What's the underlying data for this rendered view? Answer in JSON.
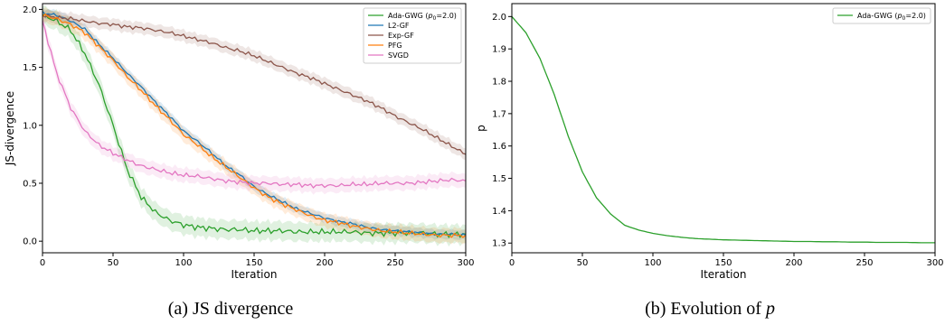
{
  "captions": [
    "(a) JS divergence",
    "(b) Evolution of p"
  ],
  "chart_data": [
    {
      "type": "line",
      "xlabel": "Iteration",
      "ylabel": "JS-divergence",
      "xlim": [
        0,
        300
      ],
      "ylim": [
        -0.1,
        2.05
      ],
      "xticks": [
        0,
        50,
        100,
        150,
        200,
        250,
        300
      ],
      "xtick_labels": [
        "0",
        "50",
        "100",
        "150",
        "200",
        "250",
        "300"
      ],
      "yticks": [
        0.0,
        0.5,
        1.0,
        1.5,
        2.0
      ],
      "ytick_labels": [
        "0.0",
        "0.5",
        "1.0",
        "1.5",
        "2.0"
      ],
      "grid": false,
      "legend_position": "top-right",
      "x": [
        0,
        10,
        20,
        30,
        40,
        50,
        60,
        70,
        80,
        90,
        100,
        110,
        120,
        130,
        140,
        150,
        160,
        170,
        180,
        190,
        200,
        210,
        220,
        230,
        240,
        250,
        260,
        270,
        280,
        290,
        300
      ],
      "series": [
        {
          "name": "Ada-GWG (p0=2.0)",
          "color": "#2ca02c",
          "values": [
            1.95,
            1.9,
            1.82,
            1.62,
            1.35,
            1.0,
            0.62,
            0.38,
            0.25,
            0.18,
            0.14,
            0.12,
            0.11,
            0.1,
            0.1,
            0.09,
            0.09,
            0.09,
            0.08,
            0.08,
            0.08,
            0.08,
            0.08,
            0.07,
            0.07,
            0.07,
            0.07,
            0.07,
            0.06,
            0.06,
            0.06
          ],
          "band": 0.08
        },
        {
          "name": "L2-GF",
          "color": "#1f77b4",
          "values": [
            1.97,
            1.95,
            1.9,
            1.83,
            1.7,
            1.58,
            1.45,
            1.33,
            1.2,
            1.08,
            0.95,
            0.86,
            0.76,
            0.65,
            0.57,
            0.47,
            0.4,
            0.34,
            0.28,
            0.24,
            0.2,
            0.17,
            0.15,
            0.12,
            0.1,
            0.09,
            0.08,
            0.07,
            0.06,
            0.06,
            0.05
          ],
          "band": 0.04
        },
        {
          "name": "Exp-GF",
          "color": "#8c564b",
          "values": [
            1.95,
            1.93,
            1.92,
            1.9,
            1.88,
            1.87,
            1.85,
            1.84,
            1.82,
            1.8,
            1.77,
            1.74,
            1.71,
            1.67,
            1.64,
            1.6,
            1.55,
            1.5,
            1.45,
            1.41,
            1.36,
            1.31,
            1.26,
            1.21,
            1.15,
            1.08,
            1.02,
            0.96,
            0.89,
            0.82,
            0.75
          ],
          "band": 0.05
        },
        {
          "name": "PFG",
          "color": "#ff7f0e",
          "values": [
            1.95,
            1.92,
            1.87,
            1.8,
            1.68,
            1.56,
            1.42,
            1.3,
            1.17,
            1.05,
            0.92,
            0.83,
            0.73,
            0.64,
            0.55,
            0.46,
            0.38,
            0.32,
            0.27,
            0.22,
            0.18,
            0.16,
            0.13,
            0.11,
            0.09,
            0.08,
            0.07,
            0.06,
            0.05,
            0.05,
            0.05
          ],
          "band": 0.06
        },
        {
          "name": "SVGD",
          "color": "#e377c2",
          "values": [
            1.9,
            1.45,
            1.15,
            0.95,
            0.83,
            0.76,
            0.7,
            0.65,
            0.62,
            0.59,
            0.57,
            0.56,
            0.54,
            0.52,
            0.51,
            0.5,
            0.5,
            0.49,
            0.49,
            0.48,
            0.48,
            0.48,
            0.49,
            0.49,
            0.5,
            0.5,
            0.5,
            0.51,
            0.52,
            0.53,
            0.52
          ],
          "band": 0.06
        }
      ]
    },
    {
      "type": "line",
      "xlabel": "Iteration",
      "ylabel": "p",
      "xlim": [
        0,
        300
      ],
      "ylim": [
        1.27,
        2.04
      ],
      "xticks": [
        0,
        50,
        100,
        150,
        200,
        250,
        300
      ],
      "xtick_labels": [
        "0",
        "50",
        "100",
        "150",
        "200",
        "250",
        "300"
      ],
      "yticks": [
        1.3,
        1.4,
        1.5,
        1.6,
        1.7,
        1.8,
        1.9,
        2.0
      ],
      "ytick_labels": [
        "1.3",
        "1.4",
        "1.5",
        "1.6",
        "1.7",
        "1.8",
        "1.9",
        "2.0"
      ],
      "grid": false,
      "legend_position": "top-right",
      "x": [
        0,
        10,
        20,
        30,
        40,
        50,
        60,
        70,
        80,
        90,
        100,
        110,
        120,
        130,
        140,
        150,
        160,
        170,
        180,
        190,
        200,
        210,
        220,
        230,
        240,
        250,
        260,
        270,
        280,
        290,
        300
      ],
      "series": [
        {
          "name": "Ada-GWG (p0=2.0)",
          "color": "#2ca02c",
          "values": [
            2.0,
            1.95,
            1.87,
            1.76,
            1.63,
            1.52,
            1.44,
            1.39,
            1.355,
            1.34,
            1.33,
            1.323,
            1.318,
            1.314,
            1.312,
            1.31,
            1.309,
            1.308,
            1.307,
            1.306,
            1.305,
            1.305,
            1.304,
            1.304,
            1.303,
            1.303,
            1.302,
            1.302,
            1.302,
            1.301,
            1.301
          ],
          "band": 0
        }
      ]
    }
  ]
}
